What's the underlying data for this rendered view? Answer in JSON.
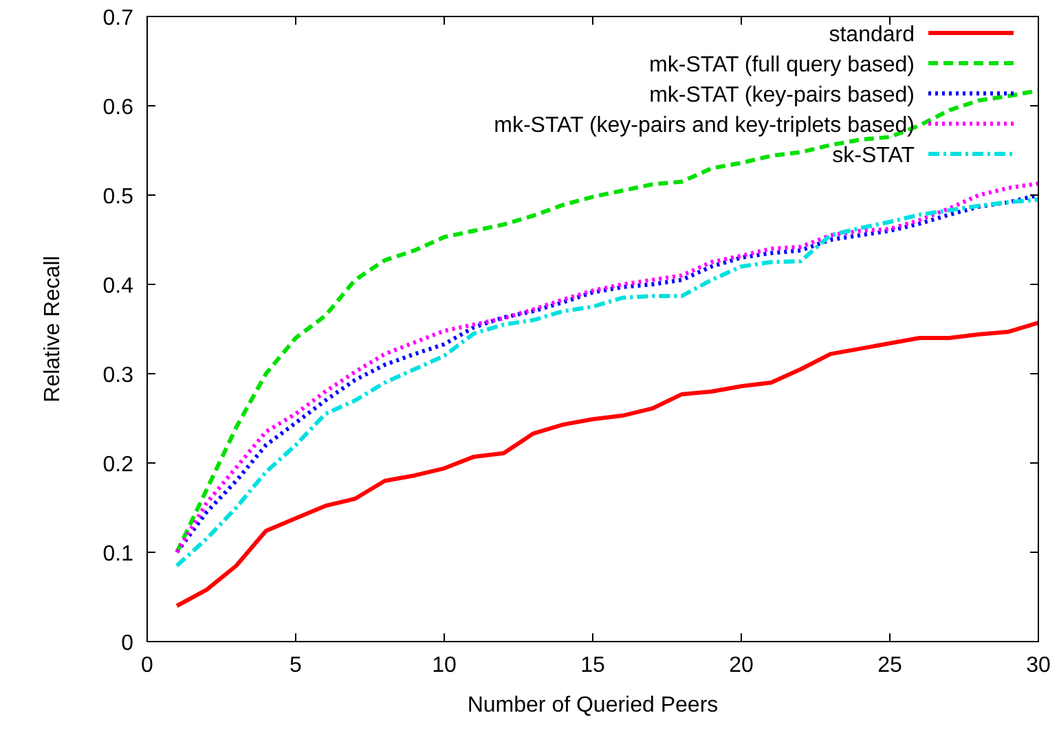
{
  "chart_data": {
    "type": "line",
    "xlabel": "Number of Queried Peers",
    "ylabel": "Relative Recall",
    "x": [
      1,
      2,
      3,
      4,
      5,
      6,
      7,
      8,
      9,
      10,
      11,
      12,
      13,
      14,
      15,
      16,
      17,
      18,
      19,
      20,
      21,
      22,
      23,
      24,
      25,
      26,
      27,
      28,
      29,
      30
    ],
    "xlim": [
      0,
      30
    ],
    "xticks": [
      0,
      5,
      10,
      15,
      20,
      25,
      30
    ],
    "ylim": [
      0,
      0.7
    ],
    "yticks": [
      0,
      0.1,
      0.2,
      0.3,
      0.4,
      0.5,
      0.6,
      0.7
    ],
    "grid": false,
    "legend": "top right",
    "marker": "none",
    "series": [
      {
        "name": "standard",
        "color": "#ff0000",
        "line_style": "solid",
        "values": [
          0.04,
          0.058,
          0.085,
          0.124,
          0.138,
          0.152,
          0.16,
          0.18,
          0.186,
          0.194,
          0.207,
          0.211,
          0.233,
          0.243,
          0.249,
          0.253,
          0.261,
          0.277,
          0.28,
          0.286,
          0.29,
          0.305,
          0.322,
          0.328,
          0.334,
          0.34,
          0.34,
          0.344,
          0.347,
          0.357
        ]
      },
      {
        "name": "mk-STAT (full query based)",
        "color": "#00e000",
        "line_style": "dashed",
        "values": [
          0.1,
          0.17,
          0.24,
          0.3,
          0.34,
          0.365,
          0.405,
          0.427,
          0.438,
          0.453,
          0.46,
          0.467,
          0.477,
          0.489,
          0.498,
          0.505,
          0.512,
          0.515,
          0.53,
          0.536,
          0.544,
          0.548,
          0.556,
          0.562,
          0.565,
          0.578,
          0.595,
          0.606,
          0.611,
          0.617
        ]
      },
      {
        "name": "mk-STAT (key-pairs based)",
        "color": "#0000ff",
        "line_style": "dotted",
        "values": [
          0.1,
          0.145,
          0.18,
          0.22,
          0.245,
          0.27,
          0.293,
          0.31,
          0.322,
          0.333,
          0.352,
          0.363,
          0.37,
          0.38,
          0.391,
          0.397,
          0.4,
          0.405,
          0.42,
          0.43,
          0.435,
          0.438,
          0.45,
          0.455,
          0.46,
          0.468,
          0.478,
          0.487,
          0.492,
          0.5
        ]
      },
      {
        "name": "mk-STAT (key-pairs and key-triplets based)",
        "color": "#ff00ff",
        "line_style": "dotted",
        "values": [
          0.1,
          0.155,
          0.195,
          0.235,
          0.255,
          0.28,
          0.302,
          0.322,
          0.335,
          0.348,
          0.355,
          0.362,
          0.372,
          0.383,
          0.393,
          0.4,
          0.405,
          0.41,
          0.425,
          0.432,
          0.44,
          0.442,
          0.455,
          0.46,
          0.462,
          0.472,
          0.485,
          0.5,
          0.508,
          0.513
        ]
      },
      {
        "name": "sk-STAT",
        "color": "#00e0e0",
        "line_style": "dashdot",
        "values": [
          0.085,
          0.115,
          0.15,
          0.19,
          0.22,
          0.255,
          0.27,
          0.29,
          0.305,
          0.32,
          0.345,
          0.355,
          0.36,
          0.37,
          0.375,
          0.385,
          0.387,
          0.387,
          0.405,
          0.42,
          0.425,
          0.426,
          0.455,
          0.463,
          0.47,
          0.478,
          0.483,
          0.488,
          0.492,
          0.495
        ]
      }
    ]
  }
}
